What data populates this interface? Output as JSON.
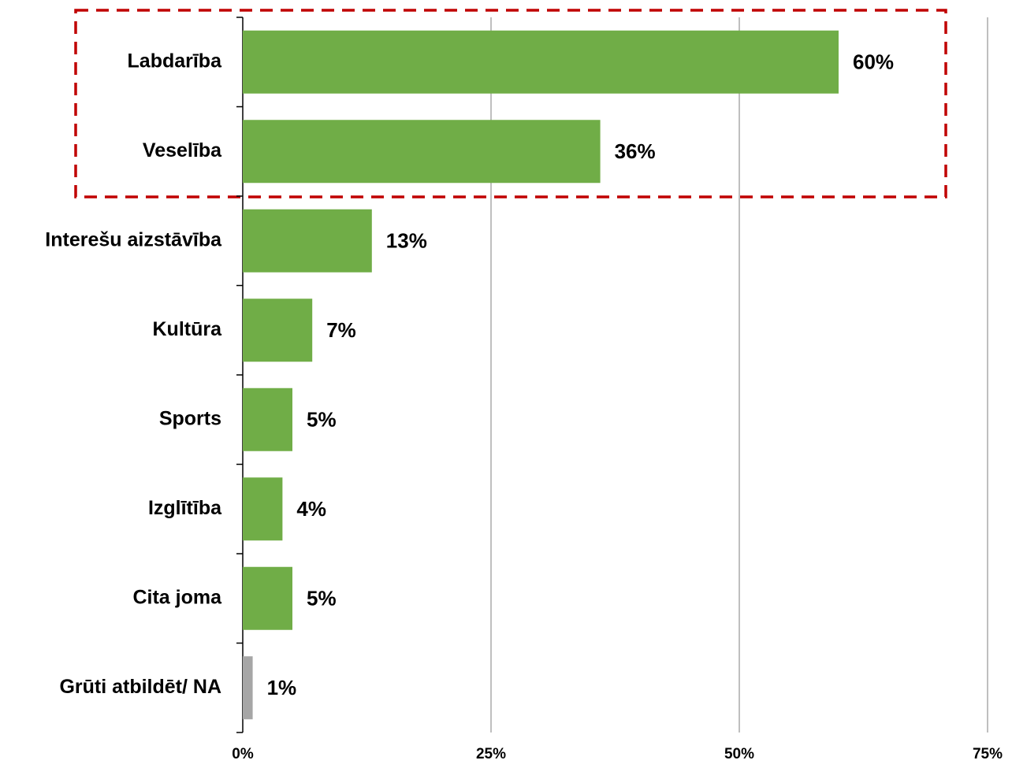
{
  "chart_data": {
    "type": "bar",
    "orientation": "horizontal",
    "categories": [
      "Labdarība",
      "Veselība",
      "Interešu aizstāvība",
      "Kultūra",
      "Sports",
      "Izglītība",
      "Cita joma",
      "Grūti atbildēt/ NA"
    ],
    "values": [
      60,
      36,
      13,
      7,
      5,
      4,
      5,
      1
    ],
    "value_labels": [
      "60%",
      "36%",
      "13%",
      "7%",
      "5%",
      "4%",
      "5%",
      "1%"
    ],
    "colors": [
      "#70ad47",
      "#70ad47",
      "#70ad47",
      "#70ad47",
      "#70ad47",
      "#70ad47",
      "#70ad47",
      "#a6a6a6"
    ],
    "xlim": [
      0,
      75
    ],
    "xticks": [
      {
        "value": 0,
        "label": "0%"
      },
      {
        "value": 25,
        "label": "25%"
      },
      {
        "value": 50,
        "label": "50%"
      },
      {
        "value": 75,
        "label": "75%"
      }
    ],
    "grid": true
  }
}
